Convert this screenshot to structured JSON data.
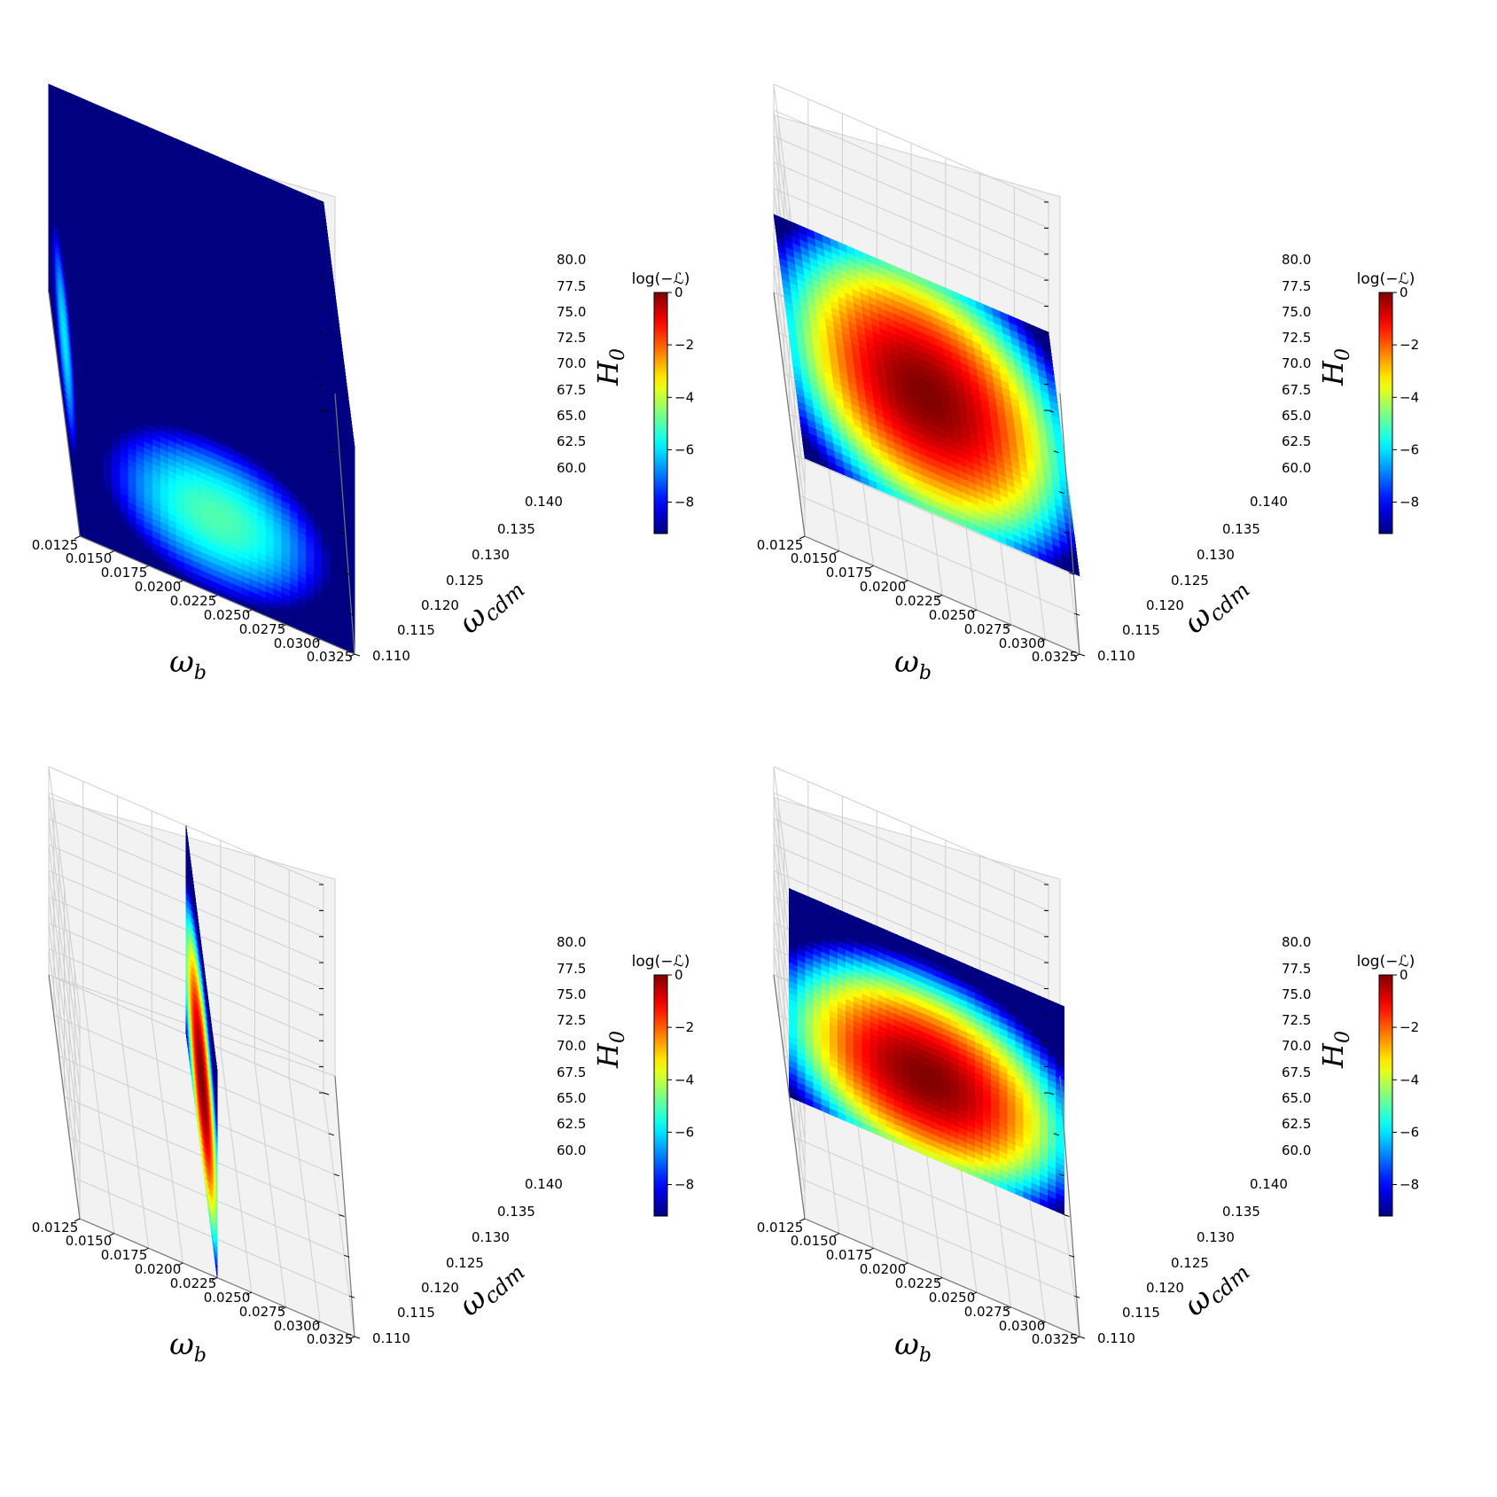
{
  "colors": {
    "pane_fill": "#f2f2f2",
    "pane_edge": "#d0d0d0",
    "grid": "#cfcfcf",
    "axis": "#000000",
    "colormap": "jet"
  },
  "chart_data": [
    {
      "type": "scatter3d",
      "title": "",
      "slice": "full-cube",
      "x": {
        "label": "ω",
        "label_sub": "b",
        "ticks": [
          "0.0125",
          "0.0150",
          "0.0175",
          "0.0200",
          "0.0225",
          "0.0250",
          "0.0275",
          "0.0300",
          "0.0325"
        ],
        "range": [
          0.0125,
          0.0325
        ]
      },
      "y": {
        "label": "ω",
        "label_sub": "cdm",
        "ticks": [
          "0.110",
          "0.115",
          "0.120",
          "0.125",
          "0.130",
          "0.135",
          "0.140"
        ],
        "range": [
          0.11,
          0.14
        ]
      },
      "z": {
        "label": "H",
        "label_sub": "0",
        "ticks": [
          "60.0",
          "62.5",
          "65.0",
          "67.5",
          "70.0",
          "72.5",
          "75.0",
          "77.5",
          "80.0"
        ],
        "range": [
          60.0,
          80.0
        ]
      },
      "colorbar": {
        "label": "log(−ℒ)",
        "ticks": [
          "0",
          "−2",
          "−4",
          "−6",
          "−8"
        ],
        "range": [
          -9.2,
          0
        ]
      },
      "peak": {
        "omega_b": 0.0225,
        "omega_cdm": 0.125,
        "H0": 67.5
      }
    },
    {
      "type": "scatter3d",
      "title": "",
      "slice": "constant-H0",
      "slice_value": 67.5,
      "x": {
        "label": "ω",
        "label_sub": "b",
        "ticks": [
          "0.0125",
          "0.0150",
          "0.0175",
          "0.0200",
          "0.0225",
          "0.0250",
          "0.0275",
          "0.0300",
          "0.0325"
        ],
        "range": [
          0.0125,
          0.0325
        ]
      },
      "y": {
        "label": "ω",
        "label_sub": "cdm",
        "ticks": [
          "0.110",
          "0.115",
          "0.120",
          "0.125",
          "0.130",
          "0.135",
          "0.140"
        ],
        "range": [
          0.11,
          0.14
        ]
      },
      "z": {
        "label": "H",
        "label_sub": "0",
        "ticks": [
          "60.0",
          "62.5",
          "65.0",
          "67.5",
          "70.0",
          "72.5",
          "75.0",
          "77.5",
          "80.0"
        ],
        "range": [
          60.0,
          80.0
        ]
      },
      "colorbar": {
        "label": "log(−ℒ)",
        "ticks": [
          "0",
          "−2",
          "−4",
          "−6",
          "−8"
        ],
        "range": [
          -9.2,
          0
        ]
      },
      "peak": {
        "omega_b": 0.0225,
        "omega_cdm": 0.125,
        "H0": 67.5
      }
    },
    {
      "type": "scatter3d",
      "title": "",
      "slice": "constant-omega_b",
      "slice_value": 0.0225,
      "x": {
        "label": "ω",
        "label_sub": "b",
        "ticks": [
          "0.0125",
          "0.0150",
          "0.0175",
          "0.0200",
          "0.0225",
          "0.0250",
          "0.0275",
          "0.0300",
          "0.0325"
        ],
        "range": [
          0.0125,
          0.0325
        ]
      },
      "y": {
        "label": "ω",
        "label_sub": "cdm",
        "ticks": [
          "0.110",
          "0.115",
          "0.120",
          "0.125",
          "0.130",
          "0.135",
          "0.140"
        ],
        "range": [
          0.11,
          0.14
        ]
      },
      "z": {
        "label": "H",
        "label_sub": "0",
        "ticks": [
          "60.0",
          "62.5",
          "65.0",
          "67.5",
          "70.0",
          "72.5",
          "75.0",
          "77.5",
          "80.0"
        ],
        "range": [
          60.0,
          80.0
        ]
      },
      "colorbar": {
        "label": "log(−ℒ)",
        "ticks": [
          "0",
          "−2",
          "−4",
          "−6",
          "−8"
        ],
        "range": [
          -9.2,
          0
        ]
      },
      "peak": {
        "omega_b": 0.0225,
        "omega_cdm": 0.125,
        "H0": 67.5
      }
    },
    {
      "type": "scatter3d",
      "title": "",
      "slice": "constant-omega_cdm",
      "slice_value": 0.125,
      "x": {
        "label": "ω",
        "label_sub": "b",
        "ticks": [
          "0.0125",
          "0.0150",
          "0.0175",
          "0.0200",
          "0.0225",
          "0.0250",
          "0.0275",
          "0.0300",
          "0.0325"
        ],
        "range": [
          0.0125,
          0.0325
        ]
      },
      "y": {
        "label": "ω",
        "label_sub": "cdm",
        "ticks": [
          "0.110",
          "0.115",
          "0.120",
          "0.125",
          "0.130",
          "0.135",
          "0.140"
        ],
        "range": [
          0.11,
          0.14
        ]
      },
      "z": {
        "label": "H",
        "label_sub": "0",
        "ticks": [
          "60.0",
          "62.5",
          "65.0",
          "67.5",
          "70.0",
          "72.5",
          "75.0",
          "77.5",
          "80.0"
        ],
        "range": [
          60.0,
          80.0
        ]
      },
      "colorbar": {
        "label": "log(−ℒ)",
        "ticks": [
          "0",
          "−2",
          "−4",
          "−6",
          "−8"
        ],
        "range": [
          -9.2,
          0
        ]
      },
      "peak": {
        "omega_b": 0.0225,
        "omega_cdm": 0.125,
        "H0": 67.5
      }
    }
  ]
}
